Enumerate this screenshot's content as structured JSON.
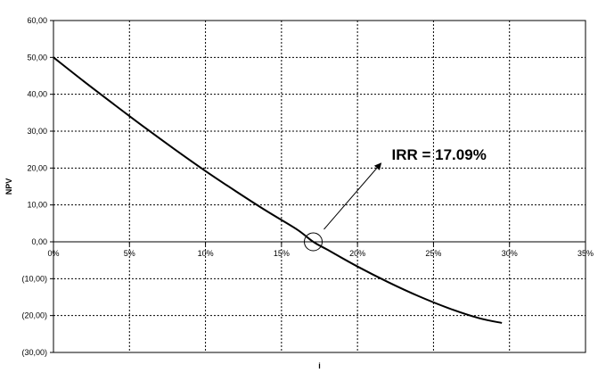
{
  "chart_data": {
    "type": "line",
    "title": "",
    "xlabel": "i",
    "ylabel": "NPV",
    "xlim": [
      0,
      0.35
    ],
    "ylim": [
      -30,
      60
    ],
    "grid": true,
    "legend": "none",
    "x_ticks": [
      0,
      0.05,
      0.1,
      0.15,
      0.2,
      0.25,
      0.3,
      0.35
    ],
    "x_tick_labels": [
      "0%",
      "5%",
      "10%",
      "15%",
      "20%",
      "25%",
      "30%",
      "35%"
    ],
    "y_ticks": [
      60,
      50,
      40,
      30,
      20,
      10,
      0,
      -10,
      -20,
      -30
    ],
    "y_tick_labels": [
      "60,00",
      "50,00",
      "40,00",
      "30,00",
      "20,00",
      "10,00",
      "0,00",
      "(10,00)",
      "(20,00)",
      "(30,00)"
    ],
    "series": [
      {
        "color": "#000000",
        "x": [
          0,
          0.02,
          0.04,
          0.06,
          0.08,
          0.1,
          0.12,
          0.14,
          0.16,
          0.1709,
          0.18,
          0.2,
          0.22,
          0.24,
          0.26,
          0.28,
          0.295
        ],
        "y": [
          50,
          43.5,
          37.2,
          31.0,
          25.0,
          19.2,
          13.7,
          8.4,
          3.4,
          0,
          -2.1,
          -6.7,
          -10.9,
          -14.7,
          -18.0,
          -20.7,
          -22.0
        ]
      }
    ],
    "annotations": [
      {
        "text": "IRR = 17.09%",
        "x": 0.1709,
        "y": 0,
        "marker": "circle"
      }
    ]
  }
}
